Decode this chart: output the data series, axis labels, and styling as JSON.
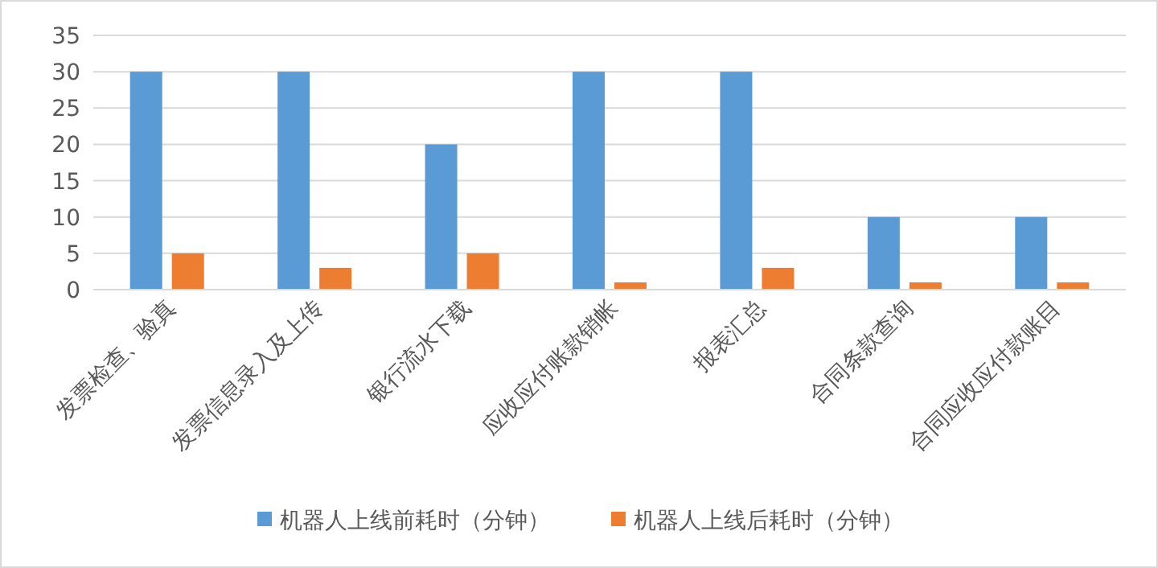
{
  "chart_data": {
    "type": "bar",
    "categories": [
      "发票检查、验真",
      "发票信息录入及上传",
      "银行流水下载",
      "应收应付账款销帐",
      "报表汇总",
      "合同条款查询",
      "合同应收应付款账目"
    ],
    "series": [
      {
        "name": "机器人上线前耗时（分钟）",
        "color": "#5b9bd5",
        "values": [
          30,
          30,
          20,
          30,
          30,
          10,
          10
        ]
      },
      {
        "name": "机器人上线后耗时（分钟）",
        "color": "#ed7d31",
        "values": [
          5,
          3,
          5,
          1,
          3,
          1,
          1
        ]
      }
    ],
    "ylim": [
      0,
      35
    ],
    "yticks": [
      0,
      5,
      10,
      15,
      20,
      25,
      30,
      35
    ],
    "grid": "y",
    "legend": "bottom"
  }
}
